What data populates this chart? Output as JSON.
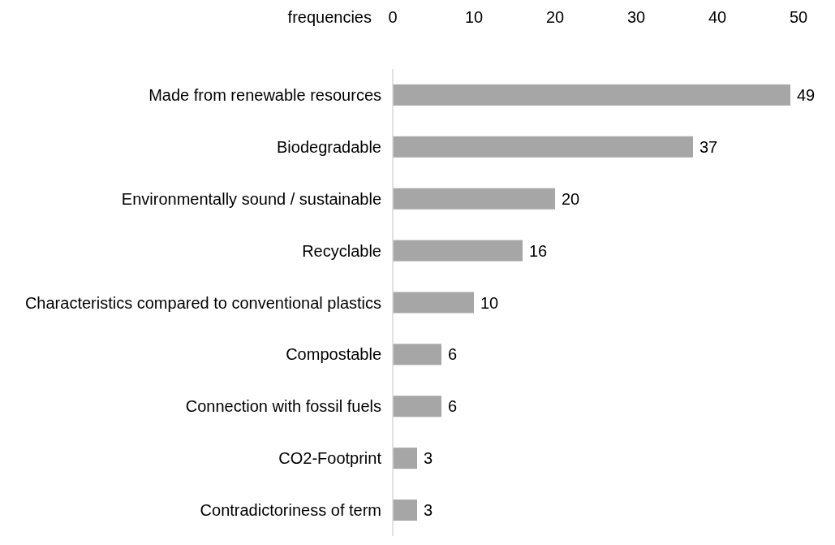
{
  "chart_data": {
    "type": "bar",
    "orientation": "horizontal",
    "xlabel": "frequencies",
    "categories": [
      "Made from renewable resources",
      "Biodegradable",
      "Environmentally sound / sustainable",
      "Recyclable",
      "Characteristics compared to conventional plastics",
      "Compostable",
      "Connection with fossil fuels",
      "CO2-Footprint",
      "Contradictoriness of term"
    ],
    "values": [
      49,
      37,
      20,
      16,
      10,
      6,
      6,
      3,
      3
    ],
    "color": "#a6a6a6",
    "xlim": [
      0,
      50
    ],
    "xticks": [
      0,
      10,
      20,
      30,
      40,
      50
    ],
    "data_labels": true
  }
}
